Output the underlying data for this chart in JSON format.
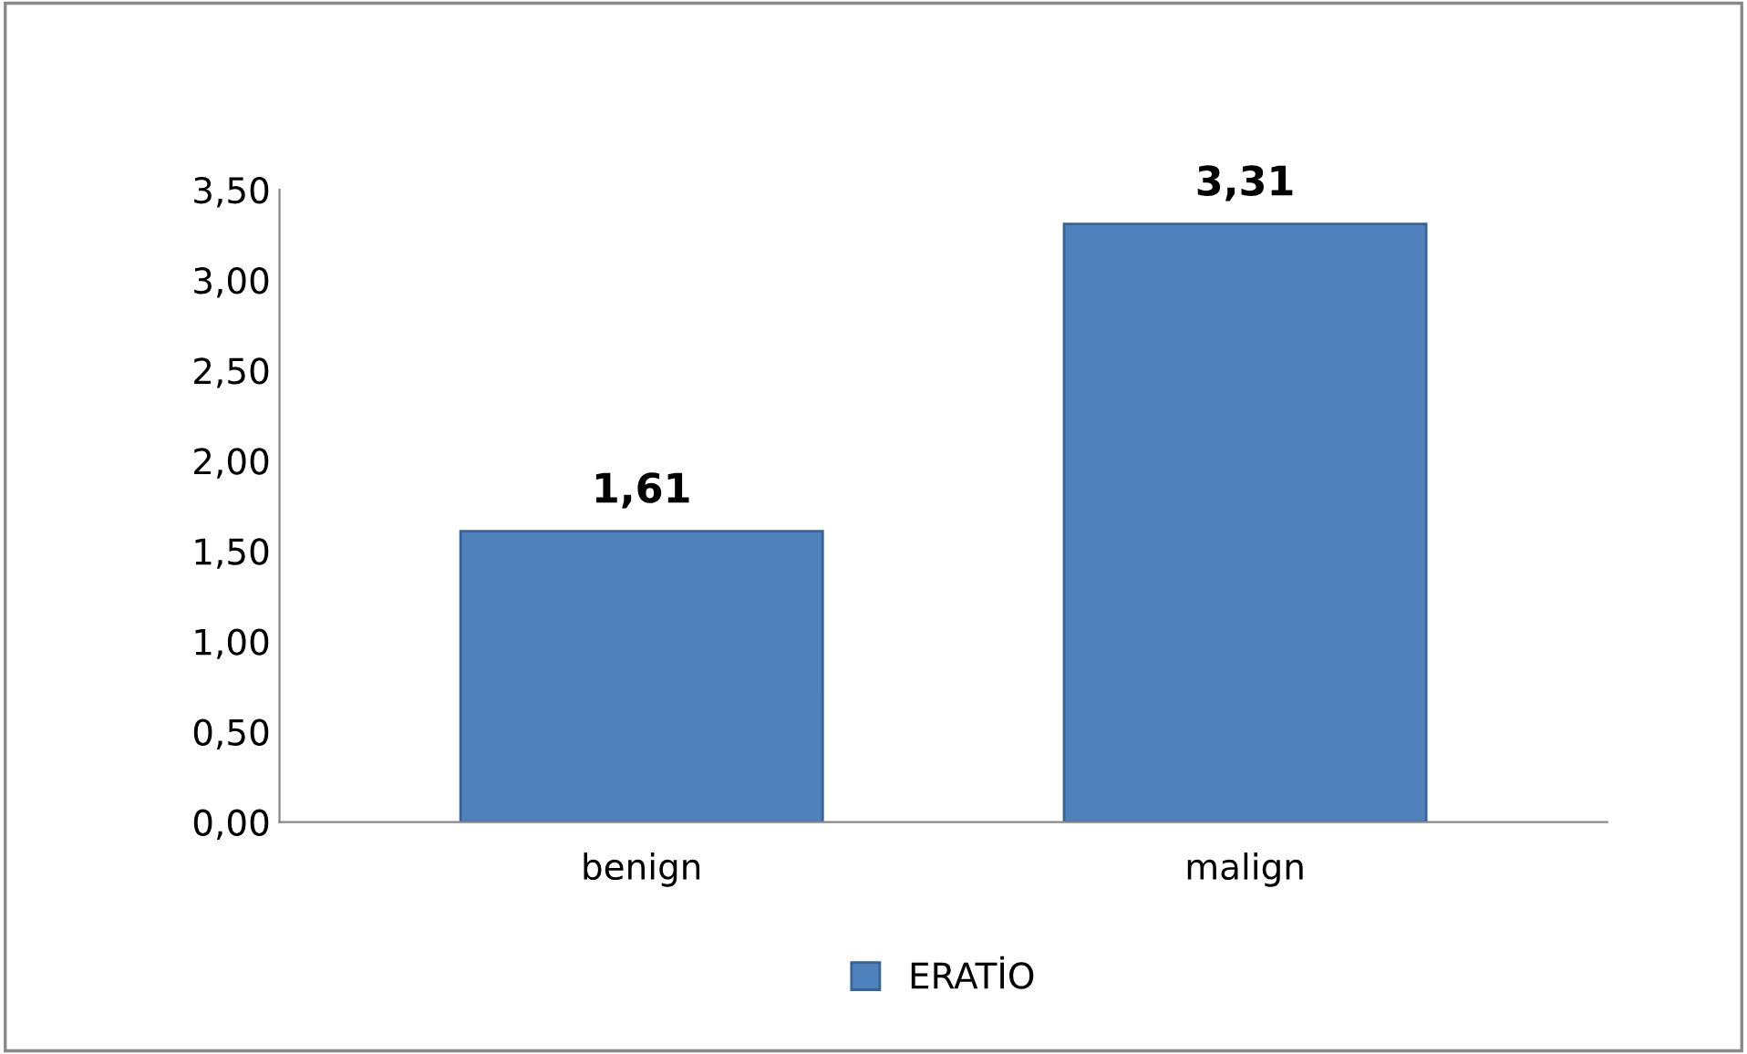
{
  "chart_data": {
    "type": "bar",
    "categories": [
      "benign",
      "malign"
    ],
    "series": [
      {
        "name": "ERATİO",
        "color": "#4f81bd",
        "values": [
          1.61,
          3.31
        ],
        "value_labels": [
          "1,61",
          "3,31"
        ]
      }
    ],
    "ylim": [
      0,
      3.5
    ],
    "yticks": [
      {
        "value": 0,
        "label": "0,00"
      },
      {
        "value": 0.5,
        "label": "0,50"
      },
      {
        "value": 1,
        "label": "1,00"
      },
      {
        "value": 1.5,
        "label": "1,50"
      },
      {
        "value": 2,
        "label": "2,00"
      },
      {
        "value": 2.5,
        "label": "2,50"
      },
      {
        "value": 3,
        "label": "3,00"
      },
      {
        "value": 3.5,
        "label": "3,50"
      }
    ],
    "grid": false,
    "legend": "bottom"
  }
}
